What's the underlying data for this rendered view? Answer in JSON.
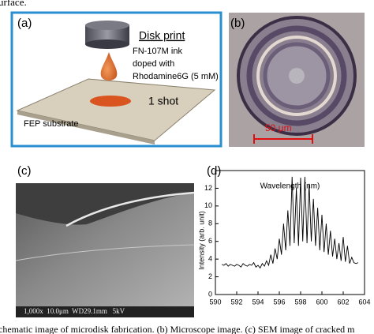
{
  "header_fragment": "urface.",
  "panel_a": {
    "label": "(a)",
    "title": "Disk print",
    "ink_line1": "FN-107M ink",
    "ink_line2": "doped with",
    "ink_line3": "Rhodamine6G (5 mM)",
    "shot": "1 shot",
    "substrate": "FEP substrate"
  },
  "panel_b": {
    "label": "(b)",
    "scale_bar": "50 μm"
  },
  "panel_c": {
    "label": "(c)",
    "sem_info": "1,000x  10.0μm  WD29.1mm   5kV"
  },
  "panel_d": {
    "label": "(d)"
  },
  "caption_fragment": "chematic image of microdisk fabrication. (b) Microscope image. (c) SEM image of cracked m",
  "chart_data": {
    "type": "line",
    "xlabel": "Wavelength (nm)",
    "ylabel": "Intensity (arb. unit)",
    "color": "#000000",
    "x": [
      590.6,
      590.8,
      591.0,
      591.2,
      591.4,
      591.6,
      591.8,
      592.0,
      592.2,
      592.4,
      592.6,
      592.8,
      593.0,
      593.2,
      593.4,
      593.6,
      593.8,
      594.0,
      594.2,
      594.4,
      594.6,
      594.8,
      595.0,
      595.2,
      595.4,
      595.6,
      595.8,
      596.0,
      596.2,
      596.4,
      596.6,
      596.8,
      597.0,
      597.2,
      597.4,
      597.6,
      597.8,
      598.0,
      598.2,
      598.4,
      598.6,
      598.8,
      599.0,
      599.2,
      599.4,
      599.6,
      599.8,
      600.0,
      600.2,
      600.4,
      600.6,
      600.8,
      601.0,
      601.2,
      601.4,
      601.6,
      601.8,
      602.0,
      602.2,
      602.4,
      602.6,
      602.8,
      603.0,
      603.2,
      603.4
    ],
    "values": [
      3.4,
      3.3,
      3.5,
      3.2,
      3.4,
      3.3,
      3.2,
      3.4,
      3.3,
      3.1,
      3.5,
      3.3,
      3.2,
      3.4,
      3.3,
      3.6,
      3.1,
      3.3,
      3.0,
      3.5,
      3.2,
      3.8,
      3.3,
      4.5,
      3.5,
      5.2,
      4.0,
      6.3,
      4.5,
      8.0,
      5.0,
      9.5,
      5.5,
      13.3,
      5.8,
      12.0,
      5.5,
      13.2,
      6.0,
      13.3,
      5.8,
      12.5,
      6.0,
      10.8,
      5.5,
      9.8,
      5.0,
      9.0,
      4.8,
      8.0,
      4.5,
      7.2,
      4.3,
      6.3,
      4.0,
      5.8,
      3.8,
      6.5,
      3.7,
      5.5,
      3.5,
      4.2,
      3.6,
      3.5,
      3.6
    ],
    "xlim": [
      590,
      604
    ],
    "xticks": [
      590,
      592,
      594,
      596,
      598,
      600,
      602,
      604
    ],
    "ylim": [
      0,
      14
    ],
    "yticks": [
      0,
      2,
      4,
      6,
      8,
      10,
      12
    ]
  }
}
